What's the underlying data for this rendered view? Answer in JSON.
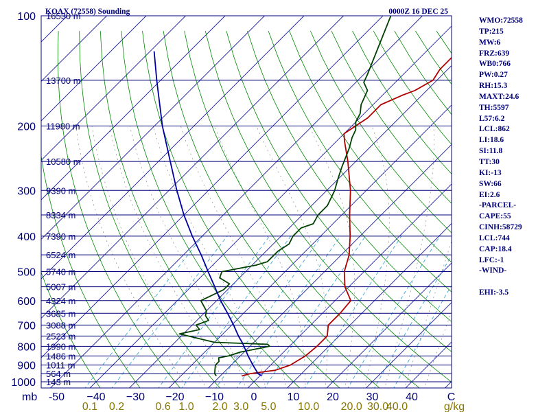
{
  "chart_data": {
    "type": "line",
    "subtype": "skew-t log-p sounding",
    "title": "KOAX (72558) Sounding",
    "valid_time": "0000Z 16 DEC 25",
    "pressure_axis": {
      "label": "mb",
      "ticks": [
        100,
        200,
        300,
        400,
        500,
        600,
        700,
        800,
        900,
        1000
      ],
      "range": [
        1000,
        100
      ]
    },
    "temperature_axis": {
      "unit": "C",
      "ticks": [
        -50,
        -40,
        -30,
        -20,
        -10,
        0,
        10,
        20,
        30,
        40,
        50
      ],
      "tick_labels": [
        "-50",
        "−40",
        "−30",
        "−20",
        "−10",
        "0",
        "10",
        "20",
        "30",
        "40",
        "C"
      ],
      "range": [
        -50,
        50
      ]
    },
    "mixing_ratio_axis": {
      "unit": "g/kg",
      "ticks": [
        0.1,
        0.2,
        0.6,
        1.0,
        2.0,
        3.0,
        5.0,
        10.0,
        20.0,
        30.0,
        40.0
      ],
      "tick_labels": [
        "0.1",
        "0.2",
        "0.6",
        "1.0",
        "2.0",
        "3.0",
        "5.0",
        "10.0",
        "20.0",
        "30.0",
        "40.0"
      ]
    },
    "height_labels": [
      {
        "p": 100,
        "label": "16530 m"
      },
      {
        "p": 150,
        "label": "13700 m"
      },
      {
        "p": 200,
        "label": "11980 m"
      },
      {
        "p": 250,
        "label": "10580 m"
      },
      {
        "p": 300,
        "label": "9390 m"
      },
      {
        "p": 350,
        "label": "8334 m"
      },
      {
        "p": 400,
        "label": "7390 m"
      },
      {
        "p": 450,
        "label": "6524 m"
      },
      {
        "p": 500,
        "label": "5740 m"
      },
      {
        "p": 550,
        "label": "5007 m"
      },
      {
        "p": 600,
        "label": "4324 m"
      },
      {
        "p": 650,
        "label": "3685 m"
      },
      {
        "p": 700,
        "label": "3088 m"
      },
      {
        "p": 750,
        "label": "2523 m"
      },
      {
        "p": 800,
        "label": "1990 m"
      },
      {
        "p": 850,
        "label": "1486 m"
      },
      {
        "p": 900,
        "label": "1011 m"
      },
      {
        "p": 950,
        "label": "564 m"
      },
      {
        "p": 1000,
        "label": "143 m"
      }
    ],
    "series": [
      {
        "name": "Temperature",
        "color": "#b00000",
        "points": [
          [
            964,
            -4.5
          ],
          [
            950,
            -3
          ],
          [
            930,
            2.5
          ],
          [
            900,
            5
          ],
          [
            850,
            6.5
          ],
          [
            800,
            7
          ],
          [
            750,
            7
          ],
          [
            700,
            4.5
          ],
          [
            650,
            4.5
          ],
          [
            600,
            4
          ],
          [
            550,
            -1
          ],
          [
            500,
            -5
          ],
          [
            450,
            -8
          ],
          [
            400,
            -12.5
          ],
          [
            350,
            -18
          ],
          [
            300,
            -24
          ],
          [
            250,
            -32
          ],
          [
            220,
            -38
          ],
          [
            210,
            -40
          ],
          [
            200,
            -39
          ],
          [
            190,
            -38
          ],
          [
            175,
            -38
          ],
          [
            165,
            -35
          ],
          [
            160,
            -33
          ],
          [
            150,
            -31
          ],
          [
            140,
            -32
          ],
          [
            130,
            -32
          ],
          [
            100,
            -32
          ]
        ]
      },
      {
        "name": "Dewpoint",
        "color": "#004000",
        "points": [
          [
            964,
            -11
          ],
          [
            950,
            -12
          ],
          [
            925,
            -13
          ],
          [
            900,
            -14
          ],
          [
            880,
            -14
          ],
          [
            860,
            -15
          ],
          [
            850,
            -13
          ],
          [
            830,
            -11
          ],
          [
            800,
            -5
          ],
          [
            790,
            -6
          ],
          [
            780,
            -20
          ],
          [
            740,
            -31
          ],
          [
            720,
            -27
          ],
          [
            700,
            -29
          ],
          [
            680,
            -27
          ],
          [
            660,
            -29
          ],
          [
            640,
            -30
          ],
          [
            620,
            -32
          ],
          [
            600,
            -34
          ],
          [
            560,
            -31
          ],
          [
            540,
            -31
          ],
          [
            520,
            -35
          ],
          [
            500,
            -36
          ],
          [
            480,
            -29
          ],
          [
            470,
            -27
          ],
          [
            440,
            -27
          ],
          [
            420,
            -26
          ],
          [
            400,
            -27
          ],
          [
            380,
            -27
          ],
          [
            370,
            -25
          ],
          [
            350,
            -26
          ],
          [
            330,
            -26
          ],
          [
            300,
            -28
          ],
          [
            280,
            -30
          ],
          [
            260,
            -32
          ],
          [
            230,
            -35
          ],
          [
            215,
            -37
          ],
          [
            205,
            -38
          ],
          [
            195,
            -40
          ],
          [
            185,
            -41
          ],
          [
            175,
            -43
          ],
          [
            160,
            -45
          ],
          [
            152,
            -48
          ],
          [
            145,
            -49
          ],
          [
            100,
            -58
          ]
        ]
      },
      {
        "name": "Parcel",
        "color": "#0000a0",
        "points": [
          [
            964,
            0.5
          ],
          [
            950,
            -1
          ],
          [
            900,
            -4.5
          ],
          [
            850,
            -8
          ],
          [
            800,
            -11.5
          ],
          [
            780,
            -13
          ],
          [
            750,
            -15.5
          ],
          [
            700,
            -19.5
          ],
          [
            650,
            -24
          ],
          [
            600,
            -29
          ],
          [
            550,
            -34
          ],
          [
            500,
            -39.5
          ],
          [
            450,
            -45.5
          ],
          [
            400,
            -52.5
          ],
          [
            350,
            -60
          ],
          [
            300,
            -68
          ],
          [
            250,
            -77
          ],
          [
            200,
            -88
          ],
          [
            150,
            -101
          ],
          [
            125,
            -109
          ]
        ]
      }
    ],
    "indices": {
      "wmo": "WMO:72558",
      "tp": "TP:215",
      "mw": "MW:6",
      "frz": "FRZ:639",
      "wb0": "WB0:766",
      "pw": "PW:0.27",
      "rh": "RH:15.3",
      "maxt": "MAXT:24.6",
      "th": "TH:5597",
      "l57": "L57:6.2",
      "lcl": "LCL:862",
      "li": "LI:18.6",
      "si": "SI:11.8",
      "tt": "TT:30",
      "ki": "KI:-13",
      "sw": "SW:66",
      "ei": "EI:2.6",
      "parcel_header": "-PARCEL-",
      "cape": "CAPE:55",
      "cinh": "CINH:58729",
      "parcel_lcl": "LCL:744",
      "cap": "CAP:18.4",
      "lfc": "LFC:-1",
      "wind_header": "-WIND-",
      "ehi": "EHI:-3.5"
    },
    "colors": {
      "isobar": "#00007a",
      "isotherm": "#1a1aa0",
      "dry_adiabat": "#008800",
      "mixing_ratio": "#3aa8d8",
      "moist_adiabat": "#888888",
      "frame": "#00007a",
      "axis_text": "#00007a",
      "mixing_text": "#887700",
      "background": "#ffffff"
    }
  }
}
